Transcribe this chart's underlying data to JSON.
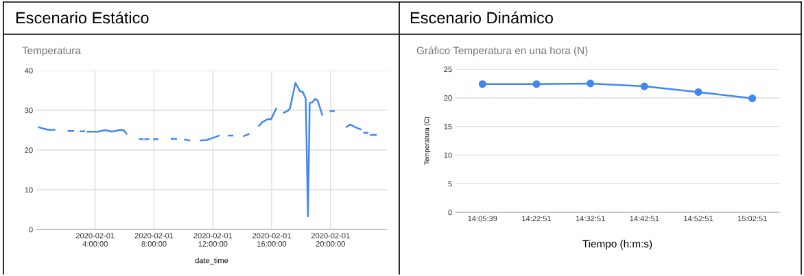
{
  "chart_data": [
    {
      "type": "line",
      "title": "Escenario Estático",
      "subtitle": "Temperatura",
      "xlabel": "date_time",
      "x": [
        "2020-02-01T00:10",
        "2020-02-01T00:47",
        "2020-02-01T01:14",
        "2020-02-01T01:30",
        "2020-02-01T02:11",
        "2020-02-01T02:30",
        "2020-02-01T02:45",
        "2020-02-01T03:00",
        "2020-02-01T03:15",
        "2020-02-01T03:20",
        "2020-02-01T03:30",
        "2020-02-01T04:12",
        "2020-02-01T04:40",
        "2020-02-01T05:08",
        "2020-02-01T05:45",
        "2020-02-01T05:57",
        "2020-02-01T06:08",
        "2020-02-01T06:30",
        "2020-02-01T07:02",
        "2020-02-01T07:14",
        "2020-02-01T07:19",
        "2020-02-01T07:24",
        "2020-02-01T07:37",
        "2020-02-01T07:45",
        "2020-02-01T08:00",
        "2020-02-01T08:14",
        "2020-02-01T08:40",
        "2020-02-01T09:12",
        "2020-02-01T09:30",
        "2020-02-01T09:45",
        "2020-02-01T10:06",
        "2020-02-01T10:24",
        "2020-02-01T10:50",
        "2020-02-01T11:11",
        "2020-02-01T11:34",
        "2020-02-01T11:54",
        "2020-02-01T12:25",
        "2020-02-01T12:50",
        "2020-02-01T13:04",
        "2020-02-01T13:20",
        "2020-02-01T13:40",
        "2020-02-01T14:07",
        "2020-02-01T14:26",
        "2020-02-01T14:50",
        "2020-02-01T15:08",
        "2020-02-01T15:22",
        "2020-02-01T15:31",
        "2020-02-01T15:45",
        "2020-02-01T15:57",
        "2020-02-01T16:18",
        "2020-02-01T16:35",
        "2020-02-01T16:50",
        "2020-02-01T17:04",
        "2020-02-01T17:14",
        "2020-02-01T17:37",
        "2020-02-01T17:55",
        "2020-02-01T18:07",
        "2020-02-01T18:19",
        "2020-02-01T18:28",
        "2020-02-01T18:35",
        "2020-02-01T18:46",
        "2020-02-01T18:58",
        "2020-02-01T19:08",
        "2020-02-01T19:26",
        "2020-02-01T19:45",
        "2020-02-01T20:00",
        "2020-02-01T20:14",
        "2020-02-01T20:30",
        "2020-02-01T21:06",
        "2020-02-01T21:20",
        "2020-02-01T21:42",
        "2020-02-01T22:03",
        "2020-02-01T22:15",
        "2020-02-01T22:17",
        "2020-02-01T22:31",
        "2020-02-01T22:35",
        "2020-02-01T22:44",
        "2020-02-01T23:05"
      ],
      "series": [
        {
          "color": "#4285f4",
          "values": [
            25.7,
            25.1,
            25.1,
            null,
            24.8,
            24.8,
            null,
            24.7,
            24.7,
            null,
            24.6,
            24.6,
            25.0,
            24.6,
            25.1,
            24.9,
            24.1,
            null,
            22.7,
            22.7,
            null,
            22.7,
            22.7,
            null,
            22.7,
            22.7,
            null,
            22.8,
            22.8,
            null,
            22.6,
            22.4,
            null,
            22.4,
            22.5,
            22.9,
            23.6,
            null,
            23.6,
            23.6,
            null,
            23.5,
            24.0,
            null,
            26.1,
            27.0,
            27.3,
            27.8,
            27.7,
            30.4,
            null,
            29.4,
            29.8,
            30.4,
            36.9,
            34.8,
            34.6,
            32.9,
            3.3,
            31.8,
            32.0,
            32.9,
            32.4,
            28.9,
            null,
            29.8,
            29.8,
            null,
            25.8,
            26.4,
            25.7,
            25.2,
            null,
            24.3,
            24.3,
            null,
            23.8,
            23.8
          ]
        }
      ],
      "xlim": [
        "2020-02-01T00:00",
        "2020-02-01T23:50"
      ],
      "xticks": [
        {
          "value": "2020-02-01T04:00",
          "label": "2020-02-01\n4:00:00"
        },
        {
          "value": "2020-02-01T08:00",
          "label": "2020-02-01\n8:00:00"
        },
        {
          "value": "2020-02-01T12:00",
          "label": "2020-02-01\n12:00:00"
        },
        {
          "value": "2020-02-01T16:00",
          "label": "2020-02-01\n16:00:00"
        },
        {
          "value": "2020-02-01T20:00",
          "label": "2020-02-01\n20:00:00"
        }
      ],
      "ylim": [
        0,
        40
      ],
      "yticks": [
        0,
        10,
        20,
        30,
        40
      ],
      "grid": true,
      "marker": "none",
      "line_style": "solid"
    },
    {
      "type": "line",
      "title": "Escenario Dinámico",
      "subtitle": "Gráfico Temperatura en una hora (N)",
      "xlabel": "Tiempo (h:m:s)",
      "ylabel": "Temperatura (C)",
      "categories": [
        "14:05:39",
        "14:22:51",
        "14:32:51",
        "14:42:51",
        "14:52:51",
        "15:02:51"
      ],
      "series": [
        {
          "color": "#4285f4",
          "values": [
            22.4,
            22.4,
            22.5,
            22.0,
            21.0,
            19.9
          ]
        }
      ],
      "ylim": [
        0,
        25
      ],
      "yticks": [
        0,
        5,
        10,
        15,
        20,
        25
      ],
      "grid": "y",
      "marker": "circle",
      "line_style": "solid"
    }
  ]
}
